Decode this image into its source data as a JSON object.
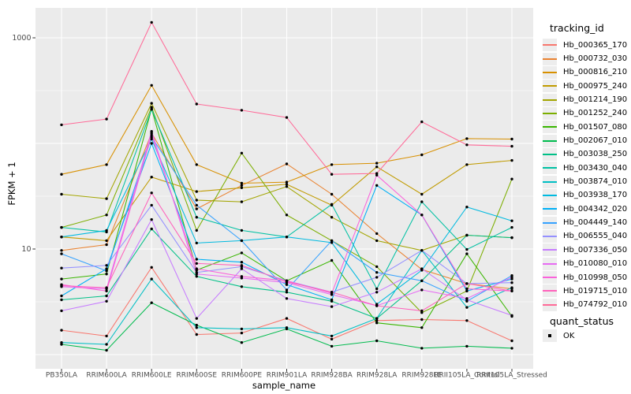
{
  "figure": {
    "background": "#FFFFFF",
    "panel_background": "#EBEBEB",
    "gridline_color": "#FFFFFF",
    "tick_color": "#333333",
    "tick_label_color": "#4D4D4D",
    "point_color": "#000000"
  },
  "chart_data": {
    "type": "line",
    "title": "",
    "xlabel": "sample_name",
    "ylabel": "FPKM + 1",
    "y_scale": "log10",
    "ylim": [
      0.73,
      1920
    ],
    "grid": true,
    "legend_position": "right",
    "y_ticks": [
      {
        "value": 10,
        "label": "10"
      },
      {
        "value": 1000,
        "label": "1000"
      }
    ],
    "y_major_gridlines": [
      1,
      10,
      100,
      1000
    ],
    "y_minor_gridlines": [
      3.162,
      31.62,
      316.2
    ],
    "categories": [
      "PB350LA",
      "RRIM600LA",
      "RRIM600LE",
      "RRIM600SE",
      "RRIM600PE",
      "RRIM901LA",
      "RRIM928BA",
      "RRIM928LA",
      "RRIM928LE",
      "RRII105LA_Control",
      "RRII105LA_Stressed"
    ],
    "values_note": "FPKM+1, estimated from pixel positions on log10 scale",
    "legend": {
      "title": "tracking_id"
    },
    "legend2": {
      "title": "quant_status",
      "items": [
        {
          "label": "OK"
        }
      ]
    },
    "series": [
      {
        "name": "Hb_000365_170",
        "color": "#F8766D",
        "values": [
          1.7,
          1.5,
          6.7,
          1.55,
          1.6,
          2.2,
          1.4,
          2.1,
          2.15,
          2.1,
          1.35
        ]
      },
      {
        "name": "Hb_000732_030",
        "color": "#EA8331",
        "values": [
          9.7,
          11,
          125,
          24,
          40,
          64,
          33,
          14,
          6.4,
          4.7,
          4.2
        ]
      },
      {
        "name": "Hb_000816_210",
        "color": "#D89000",
        "values": [
          51,
          63,
          355,
          63,
          42,
          43,
          63,
          65,
          78,
          111,
          110
        ]
      },
      {
        "name": "Hb_000975_240",
        "color": "#C09B00",
        "values": [
          13,
          12,
          48,
          35,
          38,
          41,
          26,
          60,
          33,
          63,
          69
        ]
      },
      {
        "name": "Hb_001214_190",
        "color": "#A3A500",
        "values": [
          33,
          30,
          240,
          29,
          28,
          39,
          20,
          12,
          9.7,
          13.5,
          12.8
        ]
      },
      {
        "name": "Hb_001252_240",
        "color": "#7CAE00",
        "values": [
          16,
          21,
          220,
          15,
          81,
          21,
          12,
          6.8,
          2.5,
          4.0,
          46
        ]
      },
      {
        "name": "Hb_001507_080",
        "color": "#39B600",
        "values": [
          5.2,
          5.8,
          213,
          6.3,
          9.2,
          5.0,
          7.8,
          2.0,
          1.8,
          9.0,
          2.3
        ]
      },
      {
        "name": "Hb_002067_010",
        "color": "#00BB4E",
        "values": [
          1.25,
          1.1,
          3.1,
          1.9,
          1.3,
          1.75,
          1.2,
          1.35,
          1.15,
          1.2,
          1.15
        ]
      },
      {
        "name": "Hb_003038_250",
        "color": "#00C087",
        "values": [
          3.3,
          3.6,
          15.5,
          5.5,
          4.4,
          3.9,
          3.2,
          2.2,
          5.0,
          13.5,
          12.8
        ]
      },
      {
        "name": "Hb_003430_040",
        "color": "#00C1A3",
        "values": [
          16,
          14.5,
          210,
          20,
          15,
          13,
          26.5,
          4.2,
          28,
          9.9,
          16
        ]
      },
      {
        "name": "Hb_003874_010",
        "color": "#00BFC4",
        "values": [
          1.3,
          1.25,
          5.2,
          1.8,
          1.75,
          1.8,
          1.5,
          2.2,
          9.7,
          2.8,
          4.3
        ]
      },
      {
        "name": "Hb_003938_170",
        "color": "#00BAE0",
        "values": [
          13,
          15,
          110,
          11.4,
          12,
          13,
          11.5,
          3.0,
          6.3,
          25,
          18.5
        ]
      },
      {
        "name": "Hb_004342_020",
        "color": "#00B0F6",
        "values": [
          3.6,
          6.5,
          100,
          8.0,
          7.5,
          4.6,
          3.3,
          40,
          21,
          4.0,
          5.2
        ]
      },
      {
        "name": "Hb_004449_140",
        "color": "#35A2FF",
        "values": [
          9.0,
          6.2,
          115,
          26,
          12,
          4.1,
          12,
          6.0,
          5.0,
          3.2,
          5.6
        ]
      },
      {
        "name": "Hb_006555_040",
        "color": "#9590FF",
        "values": [
          6.6,
          7.0,
          26,
          6.0,
          6.8,
          5.0,
          3.9,
          5.4,
          9.7,
          4.7,
          4.8
        ]
      },
      {
        "name": "Hb_007336_050",
        "color": "#C77CFF",
        "values": [
          2.6,
          3.2,
          19,
          2.2,
          6.5,
          3.4,
          2.85,
          3.9,
          6.5,
          3.3,
          2.35
        ]
      },
      {
        "name": "Hb_010080_010",
        "color": "#E76BF3",
        "values": [
          4.4,
          4.2,
          130,
          5.8,
          5.3,
          4.8,
          3.7,
          2.9,
          4.1,
          3.4,
          5.4
        ]
      },
      {
        "name": "Hb_010998_050",
        "color": "#FA62DB",
        "values": [
          4.6,
          4.0,
          120,
          6.5,
          5.5,
          5.0,
          3.8,
          50,
          21,
          4.2,
          4.0
        ]
      },
      {
        "name": "Hb_019715_010",
        "color": "#FF62BC",
        "values": [
          4.5,
          4.3,
          34,
          7.3,
          7.0,
          4.9,
          3.9,
          2.9,
          2.6,
          4.7,
          4.0
        ]
      },
      {
        "name": "Hb_074792_010",
        "color": "#FF6A98",
        "values": [
          150,
          170,
          1400,
          236,
          206,
          176,
          51,
          52,
          160,
          97,
          94
        ]
      }
    ]
  }
}
